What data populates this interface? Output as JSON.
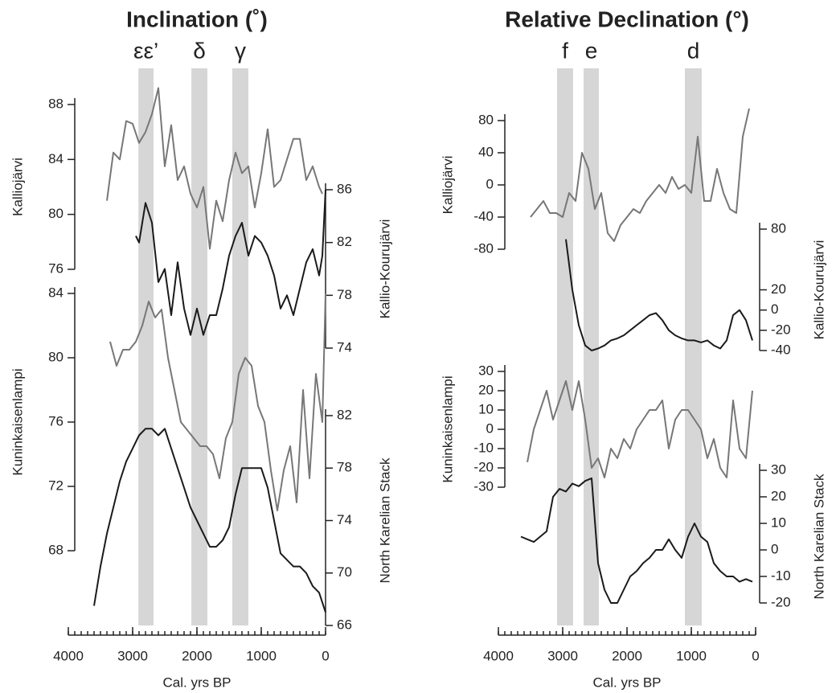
{
  "chart_data": [
    {
      "type": "line",
      "title": "Inclination (˚)",
      "xlabel": "Cal. yrs BP",
      "xlim": [
        4000,
        0
      ],
      "xticks": [
        4000,
        3000,
        2000,
        1000,
        0
      ],
      "bands": [
        {
          "label": "εε’",
          "start": 2910,
          "end": 2675
        },
        {
          "label": "δ",
          "start": 2087,
          "end": 1837
        },
        {
          "label": "γ",
          "start": 1450,
          "end": 1200
        }
      ],
      "band_color": "#d6d6d6",
      "series": [
        {
          "name": "Kalliojärvi",
          "color": "#777777",
          "ylim": [
            76,
            88
          ],
          "yticks": [
            88,
            84,
            80,
            76
          ],
          "x": [
            3400,
            3300,
            3200,
            3100,
            3000,
            2900,
            2800,
            2700,
            2600,
            2500,
            2400,
            2300,
            2200,
            2100,
            2000,
            1900,
            1800,
            1700,
            1600,
            1500,
            1400,
            1300,
            1200,
            1100,
            1000,
            900,
            800,
            700,
            600,
            500,
            400,
            300,
            200,
            100,
            50
          ],
          "values": [
            81,
            84.5,
            84,
            86.8,
            86.6,
            85.2,
            86,
            87.3,
            89.2,
            83.5,
            86.5,
            82.5,
            83.5,
            81.5,
            80.5,
            82,
            77.5,
            81,
            79.5,
            82.5,
            84.5,
            83,
            83.5,
            80.5,
            83,
            86.2,
            82,
            82.5,
            84,
            85.5,
            85.5,
            82.5,
            83.5,
            82,
            81.5
          ]
        },
        {
          "name": "Kallio-Kourujärvi",
          "color": "#1a1a1a",
          "ylim": [
            74,
            86
          ],
          "yticks": [
            86,
            82,
            78,
            74
          ],
          "x": [
            2950,
            2900,
            2800,
            2700,
            2600,
            2500,
            2400,
            2300,
            2200,
            2100,
            2000,
            1900,
            1800,
            1700,
            1600,
            1500,
            1400,
            1300,
            1200,
            1100,
            1000,
            900,
            800,
            700,
            600,
            500,
            400,
            300,
            200,
            100,
            50,
            0
          ],
          "values": [
            82.5,
            82,
            85,
            83.5,
            79,
            80,
            76.5,
            80.5,
            77,
            75,
            77,
            75,
            76.5,
            76.5,
            78.5,
            81,
            82.5,
            83.5,
            81,
            82.5,
            82,
            81,
            79.5,
            77,
            78,
            76.5,
            78.5,
            80.5,
            81.5,
            79.5,
            81,
            86
          ]
        },
        {
          "name": "Kuninkaisenlampi",
          "color": "#777777",
          "ylim": [
            68,
            84
          ],
          "yticks": [
            84,
            80,
            76,
            72,
            68
          ],
          "x": [
            3350,
            3250,
            3150,
            3050,
            2950,
            2850,
            2750,
            2650,
            2550,
            2450,
            2350,
            2250,
            2150,
            2050,
            1950,
            1850,
            1750,
            1650,
            1550,
            1450,
            1350,
            1250,
            1150,
            1050,
            950,
            850,
            750,
            650,
            550,
            450,
            350,
            250,
            150,
            50,
            0
          ],
          "values": [
            81,
            79.5,
            80.5,
            80.5,
            81,
            82,
            83.5,
            82.5,
            83,
            80,
            78,
            76,
            75.5,
            75,
            74.5,
            74.5,
            74,
            72.5,
            75,
            76,
            79,
            80,
            79.5,
            77,
            76,
            73,
            70.5,
            73,
            74.5,
            71,
            78,
            72.5,
            79,
            76,
            84
          ]
        },
        {
          "name": "North Karelian Stack",
          "color": "#1a1a1a",
          "ylim": [
            66,
            82
          ],
          "yticks": [
            82,
            78,
            74,
            70,
            66
          ],
          "x": [
            3600,
            3500,
            3400,
            3300,
            3200,
            3100,
            3000,
            2900,
            2800,
            2700,
            2600,
            2500,
            2400,
            2300,
            2200,
            2100,
            2000,
            1900,
            1800,
            1700,
            1600,
            1500,
            1400,
            1300,
            1200,
            1100,
            1000,
            900,
            800,
            700,
            600,
            500,
            400,
            300,
            200,
            100,
            0
          ],
          "values": [
            67.5,
            70.5,
            73,
            75,
            77,
            78.5,
            79.5,
            80.5,
            81,
            81,
            80.5,
            81,
            79.5,
            78,
            76.5,
            75,
            74,
            73,
            72,
            72,
            72.5,
            73.5,
            76,
            78,
            78,
            78,
            78,
            76.5,
            74,
            71.5,
            71,
            70.5,
            70.5,
            70,
            69,
            68.5,
            67
          ]
        }
      ]
    },
    {
      "type": "line",
      "title": "Relative Declination (°)",
      "xlabel": "Cal. yrs BP",
      "xlim": [
        4000,
        0
      ],
      "xticks": [
        4000,
        3000,
        2000,
        1000,
        0
      ],
      "bands": [
        {
          "label": "f",
          "start": 3088,
          "end": 2838
        },
        {
          "label": "e",
          "start": 2675,
          "end": 2438
        },
        {
          "label": "d",
          "start": 1100,
          "end": 838
        }
      ],
      "band_color": "#d6d6d6",
      "series": [
        {
          "name": "Kalliojärvi",
          "color": "#777777",
          "ylim": [
            -80,
            80
          ],
          "yticks": [
            80,
            40,
            0,
            -40,
            -80
          ],
          "x": [
            3500,
            3400,
            3300,
            3200,
            3100,
            3000,
            2900,
            2800,
            2700,
            2600,
            2500,
            2400,
            2300,
            2200,
            2100,
            2000,
            1900,
            1800,
            1700,
            1600,
            1500,
            1400,
            1300,
            1200,
            1100,
            1000,
            900,
            800,
            700,
            600,
            500,
            400,
            300,
            200,
            100
          ],
          "values": [
            -40,
            -30,
            -20,
            -35,
            -35,
            -40,
            -10,
            -20,
            40,
            20,
            -30,
            -10,
            -60,
            -70,
            -50,
            -40,
            -30,
            -35,
            -20,
            -10,
            0,
            -10,
            10,
            -5,
            0,
            -10,
            60,
            -20,
            -20,
            20,
            -10,
            -30,
            -35,
            60,
            95
          ]
        },
        {
          "name": "Kallio-Kourujärvi",
          "color": "#1a1a1a",
          "ylim": [
            -40,
            80
          ],
          "yticks": [
            80,
            20,
            0,
            -20,
            -40
          ],
          "x": [
            2950,
            2850,
            2750,
            2650,
            2550,
            2450,
            2350,
            2250,
            2150,
            2050,
            1950,
            1850,
            1750,
            1650,
            1550,
            1450,
            1350,
            1250,
            1150,
            1050,
            950,
            850,
            750,
            650,
            550,
            450,
            350,
            250,
            150,
            50
          ],
          "values": [
            70,
            20,
            -15,
            -35,
            -40,
            -38,
            -35,
            -30,
            -28,
            -25,
            -20,
            -15,
            -10,
            -5,
            -3,
            -10,
            -20,
            -25,
            -28,
            -30,
            -30,
            -32,
            -30,
            -35,
            -38,
            -30,
            -5,
            0,
            -10,
            -30
          ]
        },
        {
          "name": "Kuninkaisenlampi",
          "color": "#777777",
          "ylim": [
            -30,
            30
          ],
          "yticks": [
            30,
            20,
            10,
            0,
            -10,
            -20,
            -30
          ],
          "x": [
            3550,
            3450,
            3350,
            3250,
            3150,
            3050,
            2950,
            2850,
            2750,
            2650,
            2550,
            2450,
            2350,
            2250,
            2150,
            2050,
            1950,
            1850,
            1750,
            1650,
            1550,
            1450,
            1350,
            1250,
            1150,
            1050,
            950,
            850,
            750,
            650,
            550,
            450,
            350,
            250,
            150,
            50
          ],
          "values": [
            -17,
            0,
            10,
            20,
            5,
            15,
            25,
            10,
            25,
            5,
            -20,
            -15,
            -25,
            -10,
            -15,
            -5,
            -10,
            0,
            5,
            10,
            10,
            15,
            -10,
            5,
            10,
            10,
            5,
            0,
            -15,
            -5,
            -20,
            -25,
            15,
            -10,
            -15,
            20
          ]
        },
        {
          "name": "North Karelian Stack",
          "color": "#1a1a1a",
          "ylim": [
            -20,
            30
          ],
          "yticks": [
            30,
            20,
            10,
            0,
            -10,
            -20
          ],
          "x": [
            3650,
            3550,
            3450,
            3350,
            3250,
            3150,
            3050,
            2950,
            2850,
            2750,
            2650,
            2550,
            2450,
            2350,
            2250,
            2150,
            2050,
            1950,
            1850,
            1750,
            1650,
            1550,
            1450,
            1350,
            1250,
            1150,
            1050,
            950,
            850,
            750,
            650,
            550,
            450,
            350,
            250,
            150,
            50
          ],
          "values": [
            5,
            4,
            3,
            5,
            7,
            20,
            23,
            22,
            25,
            24,
            26,
            27,
            -5,
            -15,
            -20,
            -20,
            -15,
            -10,
            -8,
            -5,
            -3,
            0,
            0,
            4,
            0,
            -3,
            5,
            10,
            5,
            3,
            -5,
            -8,
            -10,
            -10,
            -12,
            -11,
            -12
          ]
        }
      ]
    }
  ]
}
